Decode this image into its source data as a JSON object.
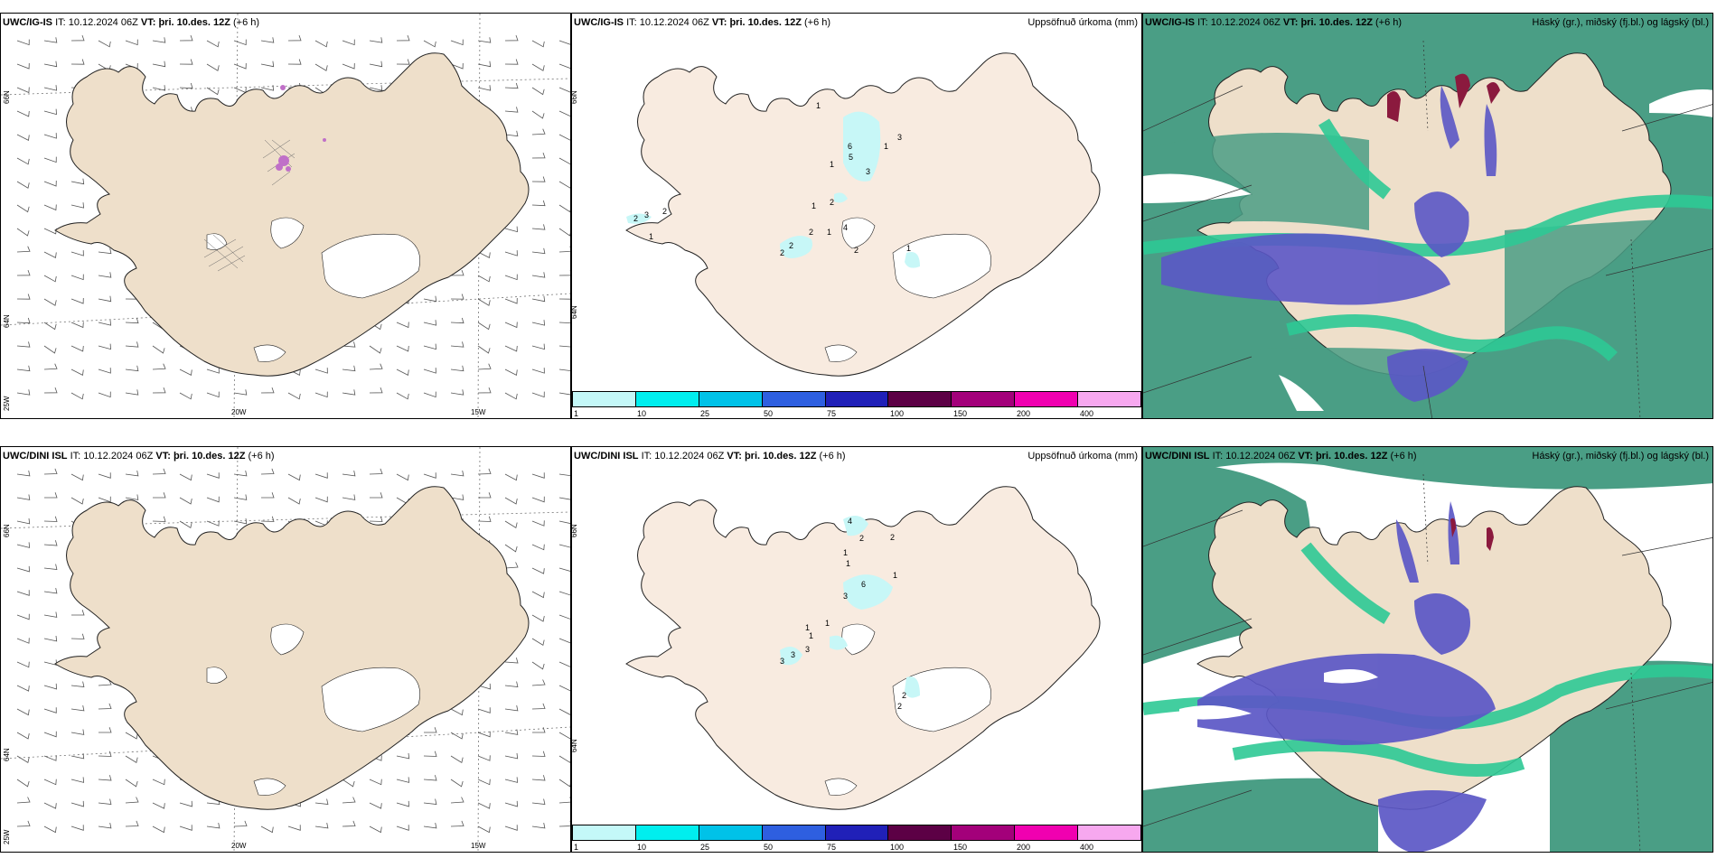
{
  "colors": {
    "land": "#eedfca",
    "land_top": "#f8ebe0",
    "ocean": "#ffffff",
    "precip": "#c7f7f7",
    "cloud_high": "#4a9e85",
    "cloud_mid": "#5b57c6",
    "cloud_low": "#2ec995"
  },
  "panels": {
    "top_wind": {
      "model": "UWC/IG-IS",
      "it_label": "IT:",
      "it_value": "10.12.2024 06Z",
      "vt_label": "VT:",
      "vt_value": "þri. 10.des. 12Z",
      "lead": "(+6 h)",
      "lon_labels": [
        "20W",
        "15W"
      ],
      "lat_labels": [
        "66N",
        "64N",
        "25W"
      ]
    },
    "top_precip": {
      "model": "UWC/IG-IS",
      "it_label": "IT:",
      "it_value": "10.12.2024 06Z",
      "vt_label": "VT:",
      "vt_value": "þri. 10.des. 12Z",
      "lead": "(+6 h)",
      "title": "Uppsöfnuð úrkoma (mm)",
      "side_label": "66N",
      "side_label2": "64N",
      "values": [
        {
          "v": "1"
        },
        {
          "v": "6"
        },
        {
          "v": "5"
        },
        {
          "v": "1"
        },
        {
          "v": "3"
        },
        {
          "v": "3"
        },
        {
          "v": "1"
        },
        {
          "v": "1"
        },
        {
          "v": "2"
        },
        {
          "v": "1"
        },
        {
          "v": "2"
        },
        {
          "v": "2"
        },
        {
          "v": "2"
        },
        {
          "v": "2"
        },
        {
          "v": "1"
        },
        {
          "v": "2"
        },
        {
          "v": "3"
        },
        {
          "v": "4"
        },
        {
          "v": "1"
        },
        {
          "v": "2"
        }
      ]
    },
    "top_cloud": {
      "model": "UWC/IG-IS",
      "it_label": "IT:",
      "it_value": "10.12.2024 06Z",
      "vt_label": "VT:",
      "vt_value": "þri. 10.des. 12Z",
      "lead": "(+6 h)",
      "title": "Háský (gr.), miðský (fj.bl.) og lágský (bl.)"
    },
    "bot_wind": {
      "model": "UWC/DINI ISL",
      "it_label": "IT:",
      "it_value": "10.12.2024 06Z",
      "vt_label": "VT:",
      "vt_value": "þri. 10.des. 12Z",
      "lead": "(+6 h)",
      "lon_labels": [
        "20W",
        "15W"
      ],
      "lat_labels": [
        "66N",
        "64N",
        "25W"
      ]
    },
    "bot_precip": {
      "model": "UWC/DINI ISL",
      "it_label": "IT:",
      "it_value": "10.12.2024 06Z",
      "vt_label": "VT:",
      "vt_value": "þri. 10.des. 12Z",
      "lead": "(+6 h)",
      "title": "Uppsöfnuð úrkoma (mm)",
      "side_label": "66N",
      "side_label2": "64N",
      "values": [
        {
          "v": "4"
        },
        {
          "v": "2"
        },
        {
          "v": "2"
        },
        {
          "v": "1"
        },
        {
          "v": "1"
        },
        {
          "v": "1"
        },
        {
          "v": "6"
        },
        {
          "v": "3"
        },
        {
          "v": "1"
        },
        {
          "v": "1"
        },
        {
          "v": "1"
        },
        {
          "v": "3"
        },
        {
          "v": "3"
        },
        {
          "v": "3"
        },
        {
          "v": "2"
        },
        {
          "v": "2"
        }
      ]
    },
    "bot_cloud": {
      "model": "UWC/DINI ISL",
      "it_label": "IT:",
      "it_value": "10.12.2024 06Z",
      "vt_label": "VT:",
      "vt_value": "þri. 10.des. 12Z",
      "lead": "(+6 h)",
      "title": "Háský (gr.), miðský (fj.bl.) og lágský (bl.)"
    }
  },
  "colorbar": {
    "ticks": [
      "1",
      "10",
      "25",
      "50",
      "75",
      "100",
      "150",
      "200",
      "400"
    ],
    "colors": [
      "#c4f8f8",
      "#00eeee",
      "#00c2e8",
      "#2e5fe0",
      "#2020b8",
      "#5c0045",
      "#a3007a",
      "#f000b0",
      "#f7a8ef"
    ]
  }
}
